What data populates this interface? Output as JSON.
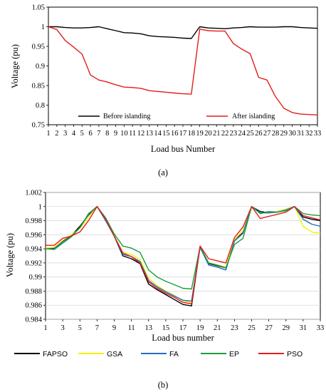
{
  "chart_data": [
    {
      "type": "line",
      "caption": "(a)",
      "xlabel": "Load bus Number",
      "ylabel": "Voltage (pu)",
      "ylim": [
        0.75,
        1.05
      ],
      "yticks": [
        "0.75",
        "0.8",
        "0.85",
        "0.9",
        "0.95",
        "1",
        "1.05"
      ],
      "x": [
        1,
        2,
        3,
        4,
        5,
        6,
        7,
        8,
        9,
        10,
        11,
        12,
        13,
        14,
        15,
        16,
        17,
        18,
        19,
        20,
        21,
        22,
        23,
        24,
        25,
        26,
        27,
        28,
        29,
        30,
        31,
        32,
        33
      ],
      "grid": false,
      "series": [
        {
          "name": "Before islanding",
          "color": "#000000",
          "values": [
            1.0,
            1.0,
            0.998,
            0.997,
            0.997,
            0.998,
            1.0,
            0.995,
            0.99,
            0.985,
            0.984,
            0.982,
            0.977,
            0.975,
            0.974,
            0.973,
            0.971,
            0.97,
            1.0,
            0.997,
            0.996,
            0.995,
            0.997,
            0.998,
            1.0,
            0.999,
            0.999,
            0.999,
            1.0,
            1.0,
            0.998,
            0.997,
            0.996
          ]
        },
        {
          "name": "After islanding",
          "color": "#e51c1c",
          "values": [
            1.0,
            0.993,
            0.965,
            0.948,
            0.93,
            0.877,
            0.864,
            0.859,
            0.852,
            0.846,
            0.845,
            0.843,
            0.837,
            0.835,
            0.833,
            0.831,
            0.829,
            0.828,
            0.994,
            0.99,
            0.989,
            0.989,
            0.957,
            0.943,
            0.931,
            0.871,
            0.864,
            0.822,
            0.792,
            0.781,
            0.777,
            0.776,
            0.775
          ]
        }
      ]
    },
    {
      "type": "line",
      "caption": "(b)",
      "xlabel": "Load bus number",
      "ylabel": "Voltage (pu)",
      "ylim": [
        0.984,
        1.002
      ],
      "yticks": [
        "0.984",
        "0.986",
        "0.988",
        "0.99",
        "0.992",
        "0.994",
        "0.996",
        "0.998",
        "1",
        "1.002"
      ],
      "xticks": [
        1,
        3,
        5,
        7,
        9,
        11,
        13,
        15,
        17,
        19,
        21,
        23,
        25,
        27,
        29,
        31,
        33
      ],
      "x": [
        1,
        2,
        3,
        4,
        5,
        6,
        7,
        8,
        9,
        10,
        11,
        12,
        13,
        14,
        15,
        16,
        17,
        18,
        19,
        20,
        21,
        22,
        23,
        24,
        25,
        26,
        27,
        28,
        29,
        30,
        31,
        32,
        33
      ],
      "grid": true,
      "series": [
        {
          "name": "FAPSO",
          "color": "#000000",
          "values": [
            0.9941,
            0.9941,
            0.9951,
            0.9959,
            0.9972,
            0.9988,
            1.0,
            0.9981,
            0.9958,
            0.993,
            0.9926,
            0.9919,
            0.989,
            0.9882,
            0.9875,
            0.9868,
            0.9861,
            0.9859,
            0.9943,
            0.9919,
            0.9916,
            0.9913,
            0.9952,
            0.9963,
            1.0,
            0.9993,
            0.9991,
            0.9993,
            0.9996,
            1.0,
            0.9985,
            0.9982,
            0.998
          ]
        },
        {
          "name": "GSA",
          "color": "#f2f200",
          "values": [
            0.9941,
            0.9942,
            0.9952,
            0.996,
            0.9969,
            0.9985,
            1.0,
            0.9983,
            0.9958,
            0.9935,
            0.9932,
            0.9925,
            0.9898,
            0.9888,
            0.988,
            0.9874,
            0.9866,
            0.9864,
            0.9944,
            0.992,
            0.9917,
            0.9914,
            0.9953,
            0.9966,
            1.0,
            0.9991,
            0.9991,
            0.9993,
            0.9996,
            1.0,
            0.9972,
            0.9964,
            0.9962
          ]
        },
        {
          "name": "FA",
          "color": "#1f6fbf",
          "values": [
            0.994,
            0.994,
            0.995,
            0.9958,
            0.997,
            0.9989,
            1.0,
            0.998,
            0.9958,
            0.9932,
            0.9929,
            0.9922,
            0.9895,
            0.9886,
            0.9879,
            0.9873,
            0.9867,
            0.9866,
            0.9942,
            0.9917,
            0.9914,
            0.991,
            0.9951,
            0.9962,
            1.0,
            0.9991,
            0.9991,
            0.9992,
            0.9995,
            1.0,
            0.9982,
            0.9975,
            0.9972
          ]
        },
        {
          "name": "EP",
          "color": "#1a9e3a",
          "values": [
            0.994,
            0.9939,
            0.9948,
            0.9957,
            0.997,
            0.999,
            1.0,
            0.9984,
            0.9961,
            0.9944,
            0.9941,
            0.9935,
            0.991,
            0.99,
            0.9894,
            0.9889,
            0.9884,
            0.9883,
            0.9943,
            0.992,
            0.9917,
            0.9913,
            0.9946,
            0.9955,
            1.0,
            0.999,
            0.9993,
            0.9992,
            0.9994,
            1.0,
            0.999,
            0.9988,
            0.9987
          ]
        },
        {
          "name": "PSO",
          "color": "#e51c1c",
          "values": [
            0.9945,
            0.9945,
            0.9955,
            0.9958,
            0.9964,
            0.998,
            1.0,
            0.9982,
            0.9958,
            0.9934,
            0.9929,
            0.992,
            0.9893,
            0.9884,
            0.9877,
            0.9871,
            0.9864,
            0.9862,
            0.9944,
            0.9926,
            0.9923,
            0.992,
            0.9956,
            0.9971,
            1.0,
            0.9983,
            0.9986,
            0.9989,
            0.9992,
            1.0,
            0.9987,
            0.9984,
            0.9981
          ]
        }
      ]
    }
  ]
}
